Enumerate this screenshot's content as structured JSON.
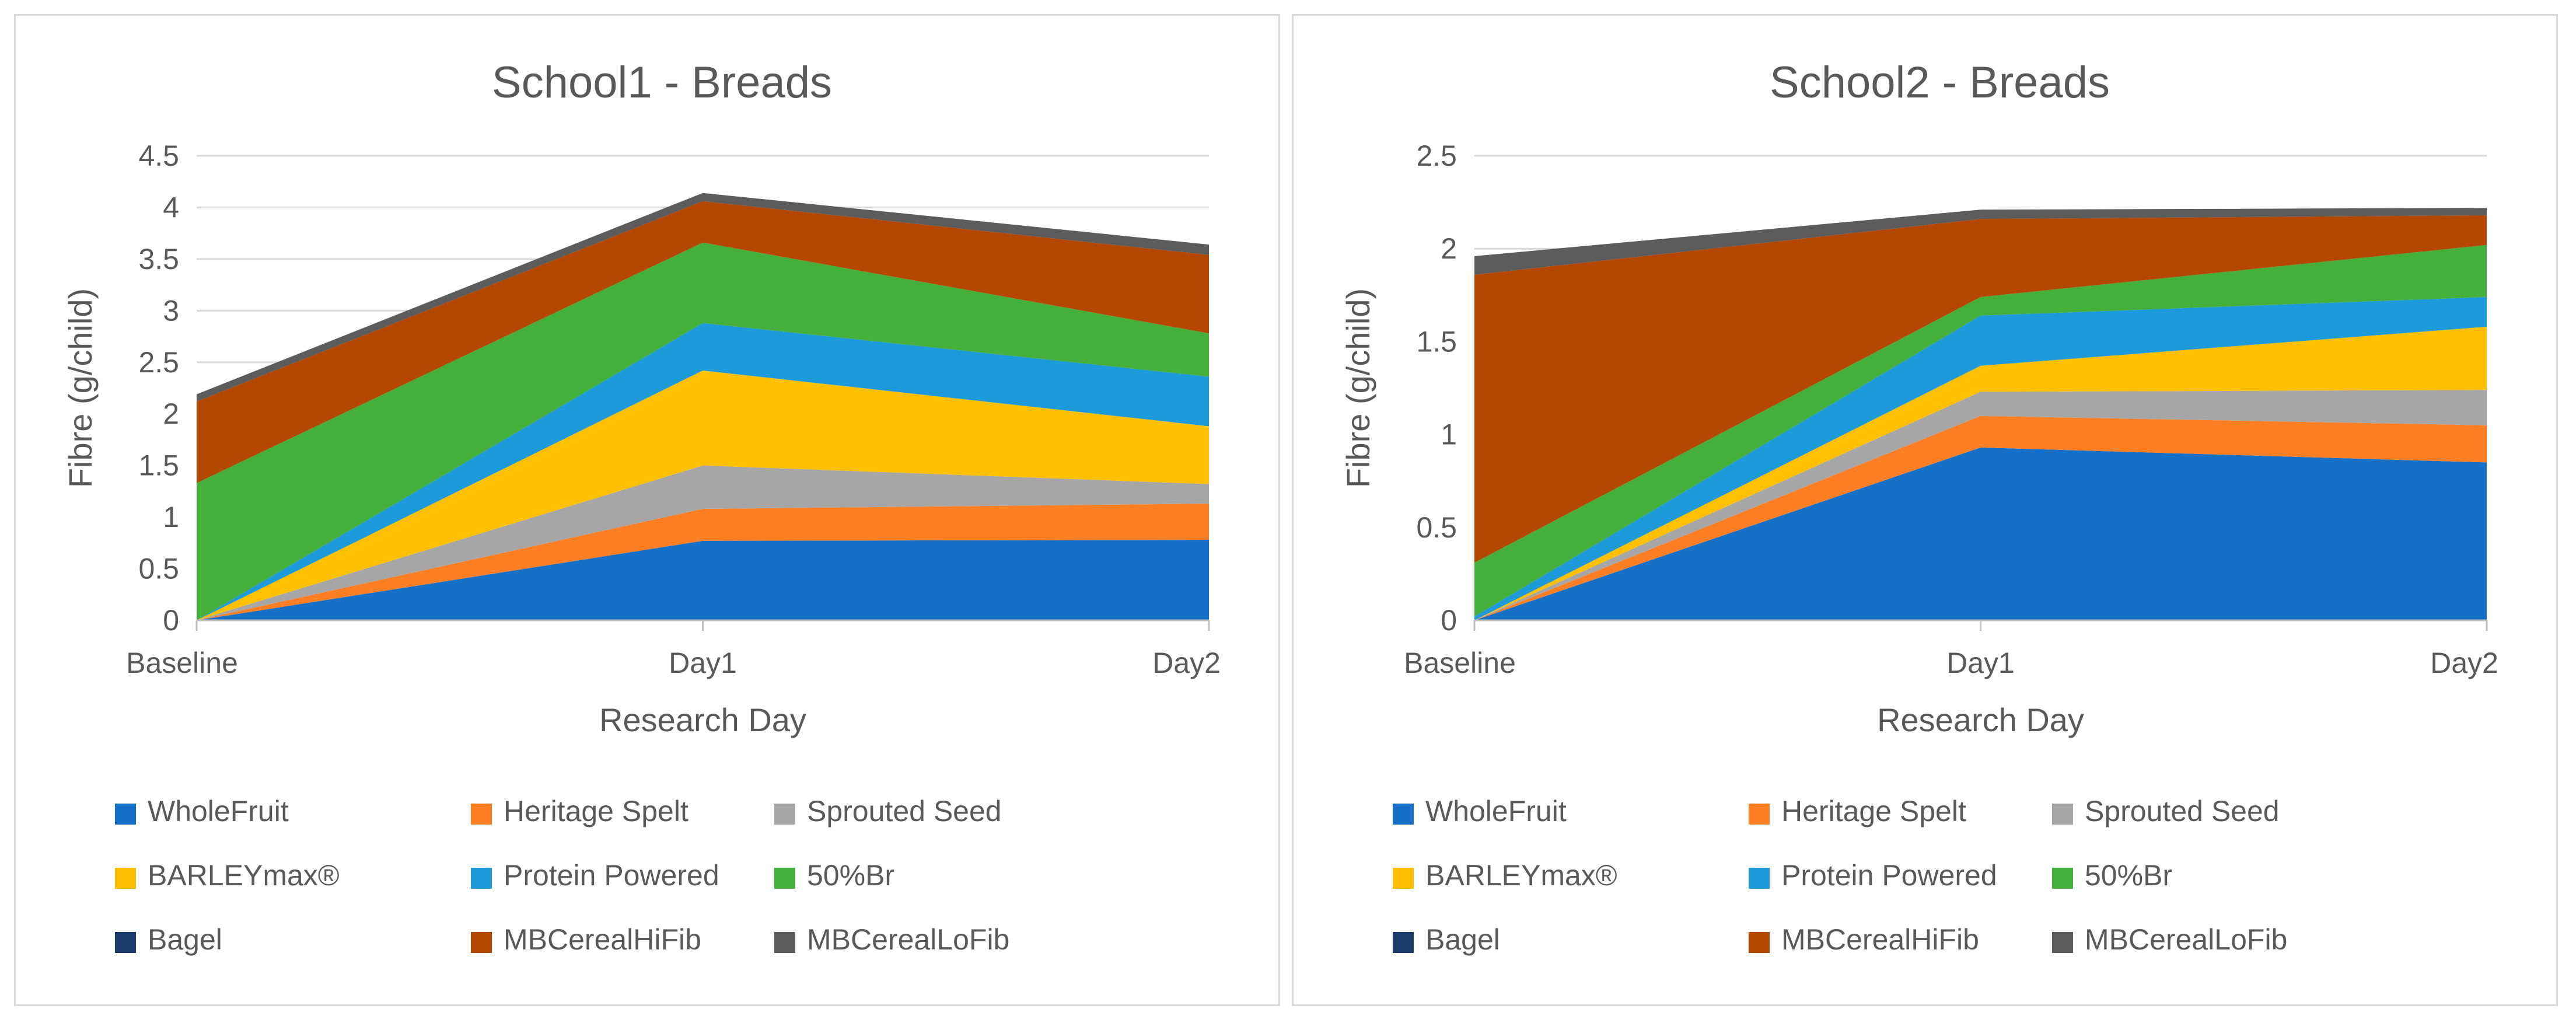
{
  "colors": {
    "WholeFruit": "#1770c8",
    "Heritage Spelt": "#fd7e23",
    "Sprouted Seed": "#a6a6a6",
    "BARLEYmax®": "#fec000",
    "Protein Powered": "#1d9ad9",
    "50%Br": "#44af3b",
    "Bagel": "#1a3a6b",
    "MBCerealHiFib": "#b44701",
    "MBCerealLoFib": "#5c5c5c"
  },
  "chart_data": [
    {
      "type": "area",
      "stacked": true,
      "title": "School1 - Breads",
      "xlabel": "Research Day",
      "ylabel": "Fibre  (g/child)",
      "categories": [
        "Baseline",
        "Day1",
        "Day2"
      ],
      "ylim": [
        0,
        4.5
      ],
      "yticks": [
        "0",
        "0.5",
        "1",
        "1.5",
        "2",
        "2.5",
        "3",
        "3.5",
        "4",
        "4.5"
      ],
      "grid": true,
      "legend_position": "bottom",
      "series": [
        {
          "name": "WholeFruit",
          "values": [
            0,
            0.77,
            0.78
          ]
        },
        {
          "name": "Heritage Spelt",
          "values": [
            0,
            0.31,
            0.35
          ]
        },
        {
          "name": "Sprouted Seed",
          "values": [
            0,
            0.42,
            0.19
          ]
        },
        {
          "name": "BARLEYmax®",
          "values": [
            0,
            0.92,
            0.56
          ]
        },
        {
          "name": "Protein Powered",
          "values": [
            0,
            0.46,
            0.48
          ]
        },
        {
          "name": "50%Br",
          "values": [
            1.33,
            0.78,
            0.42
          ]
        },
        {
          "name": "Bagel",
          "values": [
            0,
            0,
            0
          ]
        },
        {
          "name": "MBCerealHiFib",
          "values": [
            0.79,
            0.4,
            0.76
          ]
        },
        {
          "name": "MBCerealLoFib",
          "values": [
            0.07,
            0.08,
            0.1
          ]
        }
      ]
    },
    {
      "type": "area",
      "stacked": true,
      "title": "School2 - Breads",
      "xlabel": "Research Day",
      "ylabel": "Fibre  (g/child)",
      "categories": [
        "Baseline",
        "Day1",
        "Day2"
      ],
      "ylim": [
        0,
        2.5
      ],
      "yticks": [
        "0",
        "0.5",
        "1",
        "1.5",
        "2",
        "2.5"
      ],
      "grid": true,
      "legend_position": "bottom",
      "series": [
        {
          "name": "WholeFruit",
          "values": [
            0,
            0.93,
            0.85
          ]
        },
        {
          "name": "Heritage Spelt",
          "values": [
            0,
            0.17,
            0.2
          ]
        },
        {
          "name": "Sprouted Seed",
          "values": [
            0,
            0.13,
            0.19
          ]
        },
        {
          "name": "BARLEYmax®",
          "values": [
            0,
            0.14,
            0.34
          ]
        },
        {
          "name": "Protein Powered",
          "values": [
            0.02,
            0.27,
            0.16
          ]
        },
        {
          "name": "50%Br",
          "values": [
            0.29,
            0.1,
            0.28
          ]
        },
        {
          "name": "Bagel",
          "values": [
            0,
            0,
            0
          ]
        },
        {
          "name": "MBCerealHiFib",
          "values": [
            1.55,
            0.42,
            0.16
          ]
        },
        {
          "name": "MBCerealLoFib",
          "values": [
            0.1,
            0.05,
            0.04
          ]
        }
      ]
    }
  ]
}
